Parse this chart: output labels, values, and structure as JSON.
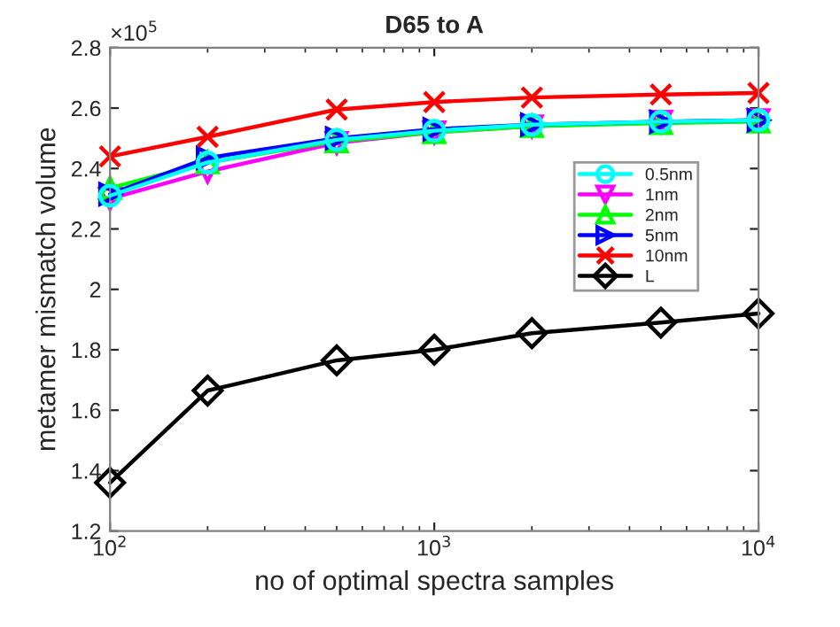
{
  "chart_data": {
    "type": "line",
    "title": "D65 to A",
    "xlabel": "no of optimal spectra samples",
    "ylabel": "metamer mismatch volume",
    "annotations": [
      "×10$^{5}$"
    ],
    "x": [
      100,
      200,
      500,
      1000,
      2000,
      5000,
      10000
    ],
    "log": "x",
    "xlim": [
      100,
      10000
    ],
    "xticks": [
      {
        "value": 100,
        "label": "10$^{2}$"
      },
      {
        "value": 1000,
        "label": "10$^{3}$"
      },
      {
        "value": 10000,
        "label": "10$^{4}$"
      }
    ],
    "ylim": [
      1.2,
      2.8
    ],
    "yticks": [
      1.2,
      1.4,
      1.6,
      1.8,
      2,
      2.2,
      2.4,
      2.6,
      2.8
    ],
    "grid": false,
    "legend": "right",
    "line_style": "solid",
    "series": [
      {
        "name": "0.5nm",
        "color": "#00ffff",
        "marker": "circle",
        "values": [
          2.31,
          2.42,
          2.495,
          2.525,
          2.545,
          2.555,
          2.56
        ]
      },
      {
        "name": "1nm",
        "color": "#ff00ff",
        "marker": "triangle_down",
        "values": [
          2.3,
          2.39,
          2.485,
          2.52,
          2.54,
          2.555,
          2.56
        ]
      },
      {
        "name": "2nm",
        "color": "#00ff00",
        "marker": "triangle",
        "values": [
          2.335,
          2.42,
          2.49,
          2.52,
          2.54,
          2.55,
          2.555
        ]
      },
      {
        "name": "5nm",
        "color": "#0000ff",
        "marker": "triangle_right",
        "values": [
          2.315,
          2.435,
          2.5,
          2.53,
          2.545,
          2.555,
          2.56
        ]
      },
      {
        "name": "10nm",
        "color": "#ff0000",
        "marker": "cross",
        "values": [
          2.44,
          2.505,
          2.595,
          2.62,
          2.635,
          2.645,
          2.65
        ]
      },
      {
        "name": "L",
        "color": "#000000",
        "marker": "diamond",
        "values": [
          1.36,
          1.665,
          1.765,
          1.8,
          1.855,
          1.89,
          1.92
        ]
      }
    ]
  }
}
